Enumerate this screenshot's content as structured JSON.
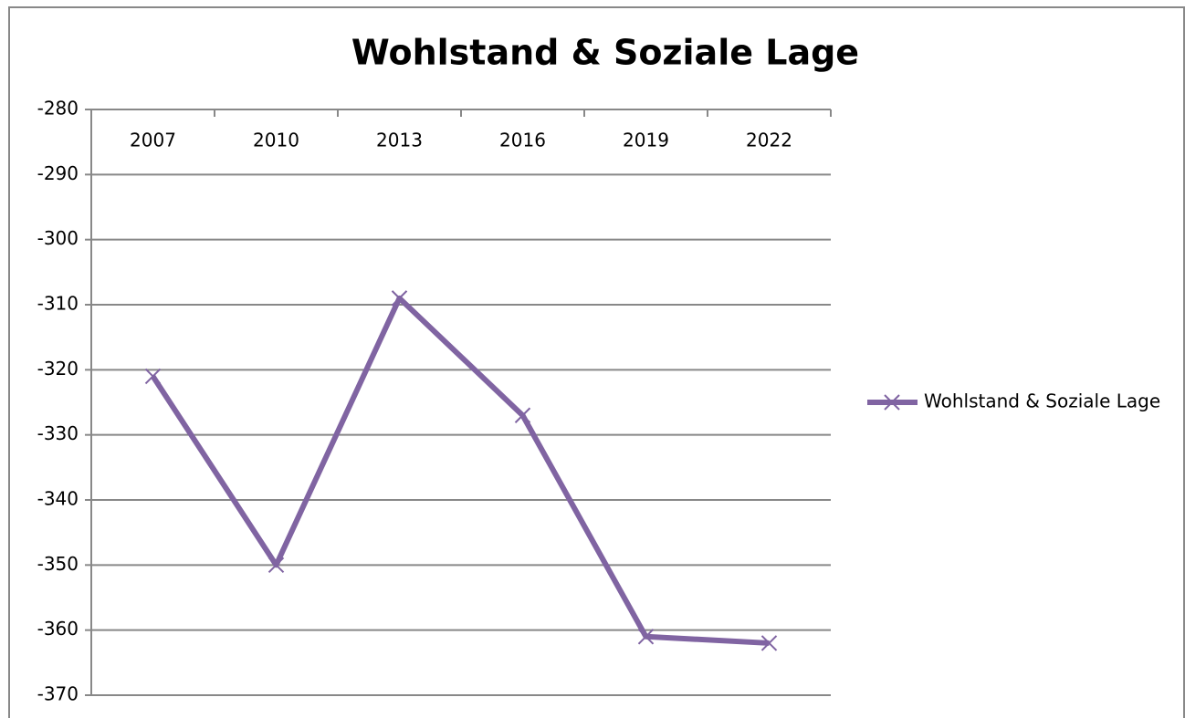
{
  "chart_data": {
    "type": "line",
    "title": "Wohlstand & Soziale Lage",
    "categories": [
      "2007",
      "2010",
      "2013",
      "2016",
      "2019",
      "2022"
    ],
    "series": [
      {
        "name": "Wohlstand & Soziale Lage",
        "color": "#8064a2",
        "values": [
          -321,
          -350,
          -309,
          -327,
          -361,
          -362
        ]
      }
    ],
    "ylim": [
      -370,
      -280
    ],
    "yticks": [
      -280,
      -290,
      -300,
      -310,
      -320,
      -330,
      -340,
      -350,
      -360,
      -370
    ],
    "grid": true,
    "legend": "right",
    "marker": "x"
  }
}
